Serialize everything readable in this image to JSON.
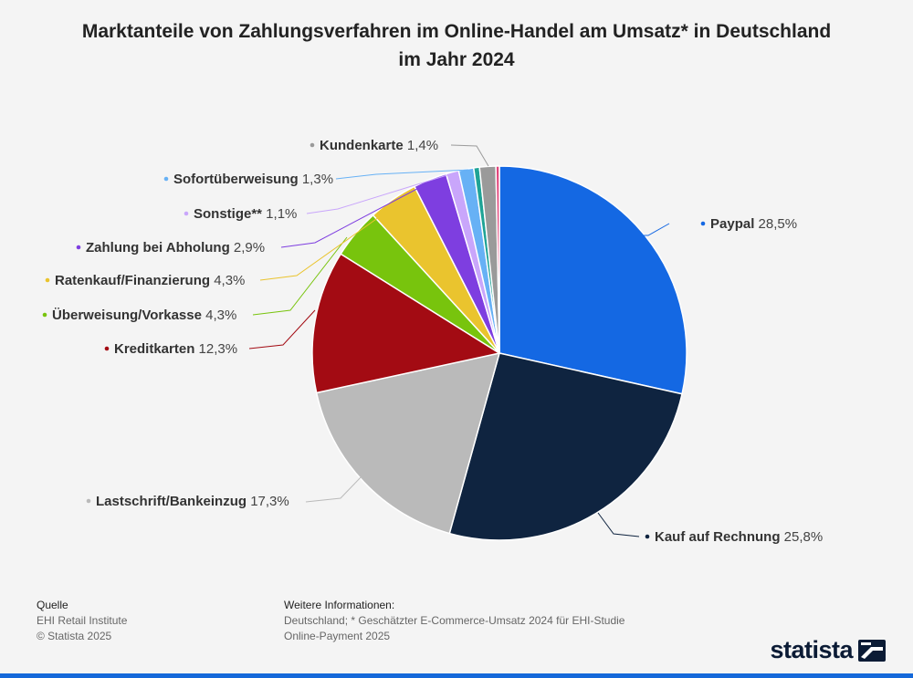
{
  "title_line1": "Marktanteile von Zahlungsverfahren im Online-Handel am Umsatz* in Deutschland",
  "title_line2": "im Jahr 2024",
  "chart_data": {
    "type": "pie",
    "title": "Marktanteile von Zahlungsverfahren im Online-Handel am Umsatz* in Deutschland im Jahr 2024",
    "unit": "%",
    "slices": [
      {
        "name": "Paypal",
        "value": 28.5,
        "label": "28,5%",
        "color": "#1468e3"
      },
      {
        "name": "Kauf auf Rechnung",
        "value": 25.8,
        "label": "25,8%",
        "color": "#0f2440"
      },
      {
        "name": "Lastschrift/Bankeinzug",
        "value": 17.3,
        "label": "17,3%",
        "color": "#bababa"
      },
      {
        "name": "Kreditkarten",
        "value": 12.3,
        "label": "12,3%",
        "color": "#a30b13"
      },
      {
        "name": "Überweisung/Vorkasse",
        "value": 4.3,
        "label": "4,3%",
        "color": "#78c40d"
      },
      {
        "name": "Ratenkauf/Finanzierung",
        "value": 4.3,
        "label": "4,3%",
        "color": "#eac42e"
      },
      {
        "name": "Zahlung bei Abholung",
        "value": 2.9,
        "label": "2,9%",
        "color": "#7e3ee0"
      },
      {
        "name": "Sonstige**",
        "value": 1.1,
        "label": "1,1%",
        "color": "#c9a6fb"
      },
      {
        "name": "Sofortüberweisung",
        "value": 1.3,
        "label": "1,3%",
        "color": "#67b1f5"
      },
      {
        "name": "",
        "value": 0.5,
        "label": "",
        "color": "#1fa396"
      },
      {
        "name": "Kundenkarte",
        "value": 1.4,
        "label": "1,4%",
        "color": "#9a9a9a"
      },
      {
        "name": "",
        "value": 0.3,
        "label": "",
        "color": "#e0447a"
      }
    ]
  },
  "footer": {
    "source_heading": "Quelle",
    "source_lines": [
      "EHI Retail Institute",
      "© Statista 2025"
    ],
    "info_heading": "Weitere Informationen:",
    "info_lines": [
      "Deutschland; * Geschätzter E-Commerce-Umsatz 2024 für EHI-Studie",
      "Online-Payment 2025"
    ]
  },
  "logo_text": "statista"
}
